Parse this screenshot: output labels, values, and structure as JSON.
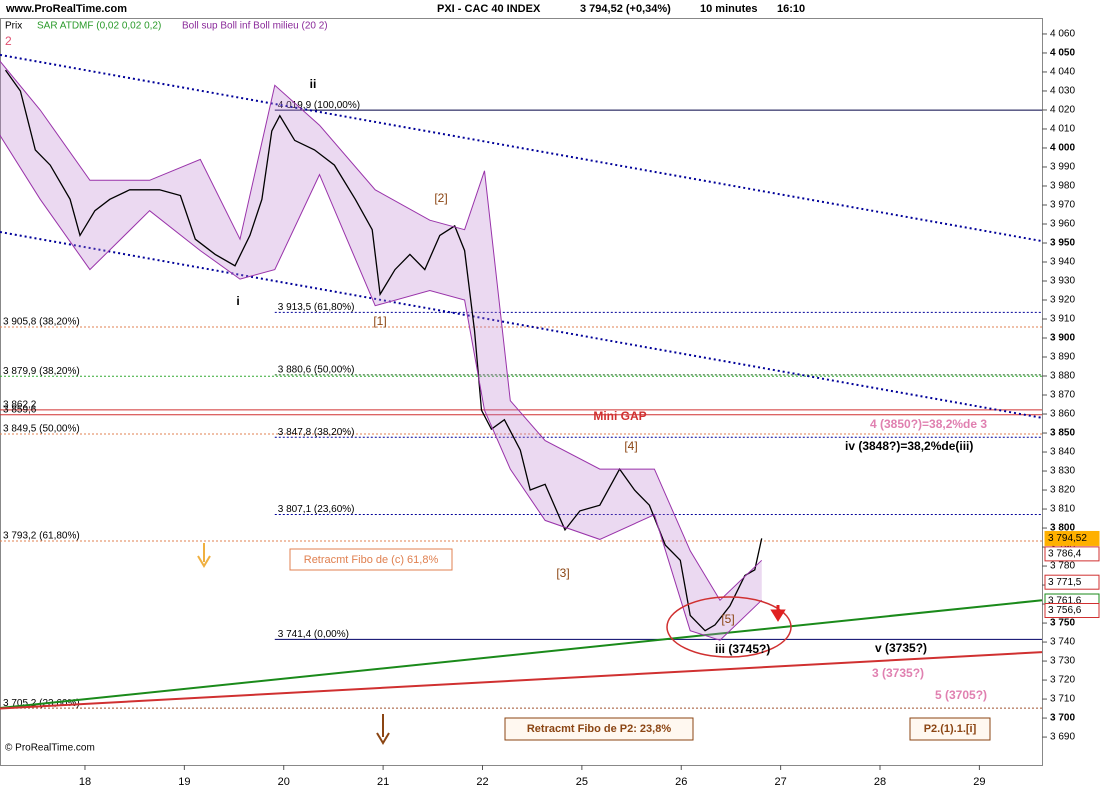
{
  "chart_data": {
    "type": "line",
    "site": "www.ProRealTime.com",
    "title": "PXI - CAC 40 INDEX",
    "price_info": "3 794,52 (+0,34%)",
    "timeframe": "10 minutes",
    "time": "16:10",
    "price_label": "Prix",
    "indicator_1": "SAR ATDMF (0,02 0,02 0,2)",
    "indicator_2": "Boll sup Boll inf Boll milieu (20 2)",
    "copyright": "© ProRealTime.com",
    "xlim": [
      -0.855,
      9.63
    ],
    "xticks": [
      {
        "value": 0,
        "label": "18"
      },
      {
        "value": 1,
        "label": "19"
      },
      {
        "value": 2,
        "label": "20"
      },
      {
        "value": 3,
        "label": "21"
      },
      {
        "value": 4,
        "label": "22"
      },
      {
        "value": 5,
        "label": "25"
      },
      {
        "value": 6,
        "label": "26"
      },
      {
        "value": 7,
        "label": "27"
      },
      {
        "value": 8,
        "label": "28"
      },
      {
        "value": 9,
        "label": "29"
      }
    ],
    "ylim": [
      3675.3,
      4068.4
    ],
    "yticks": [
      {
        "value": 4060,
        "label": "4 060"
      },
      {
        "value": 4050,
        "label": "4 050"
      },
      {
        "value": 4040,
        "label": "4 040"
      },
      {
        "value": 4030,
        "label": "4 030"
      },
      {
        "value": 4020,
        "label": "4 020"
      },
      {
        "value": 4010,
        "label": "4 010"
      },
      {
        "value": 4000,
        "label": "4 000"
      },
      {
        "value": 3990,
        "label": "3 990"
      },
      {
        "value": 3980,
        "label": "3 980"
      },
      {
        "value": 3970,
        "label": "3 970"
      },
      {
        "value": 3960,
        "label": "3 960"
      },
      {
        "value": 3950,
        "label": "3 950"
      },
      {
        "value": 3940,
        "label": "3 940"
      },
      {
        "value": 3930,
        "label": "3 930"
      },
      {
        "value": 3920,
        "label": "3 920"
      },
      {
        "value": 3910,
        "label": "3 910"
      },
      {
        "value": 3900,
        "label": "3 900"
      },
      {
        "value": 3890,
        "label": "3 890"
      },
      {
        "value": 3880,
        "label": "3 880"
      },
      {
        "value": 3870,
        "label": "3 870"
      },
      {
        "value": 3860,
        "label": "3 860"
      },
      {
        "value": 3850,
        "label": "3 850"
      },
      {
        "value": 3840,
        "label": "3 840"
      },
      {
        "value": 3830,
        "label": "3 830"
      },
      {
        "value": 3820,
        "label": "3 820"
      },
      {
        "value": 3810,
        "label": "3 810"
      },
      {
        "value": 3800,
        "label": "3 800"
      },
      {
        "value": 3790,
        "label": "3 790"
      },
      {
        "value": 3780,
        "label": "3 780"
      },
      {
        "value": 3770,
        "label": "3 770"
      },
      {
        "value": 3760,
        "label": "3 760"
      },
      {
        "value": 3750,
        "label": "3 750"
      },
      {
        "value": 3740,
        "label": "3 740"
      },
      {
        "value": 3730,
        "label": "3 730"
      },
      {
        "value": 3720,
        "label": "3 720"
      },
      {
        "value": 3710,
        "label": "3 710"
      },
      {
        "value": 3700,
        "label": "3 700"
      },
      {
        "value": 3690,
        "label": "3 690"
      }
    ],
    "series": [
      {
        "color": "#000000",
        "x": [
          -0.8,
          -0.65,
          -0.5,
          -0.35,
          -0.15,
          -0.05,
          0.1,
          0.25,
          0.45,
          0.75,
          0.96,
          1.11,
          1.31,
          1.51,
          1.66,
          1.78,
          1.88,
          1.96,
          2.11,
          2.31,
          2.51,
          2.72,
          2.89,
          2.97,
          3.12,
          3.27,
          3.42,
          3.57,
          3.72,
          3.82,
          3.92,
          3.99,
          4.09,
          4.22,
          4.38,
          4.48,
          4.63,
          4.83,
          4.98,
          5.18,
          5.38,
          5.53,
          5.68,
          5.84,
          5.99,
          6.09,
          6.24,
          6.34,
          6.49,
          6.64,
          6.74,
          6.81
        ],
        "values": [
          4041,
          4030,
          3999,
          3991,
          3973,
          3954,
          3967,
          3973,
          3978,
          3978,
          3975,
          3952,
          3944,
          3938,
          3954,
          3973,
          4009,
          4017,
          4004,
          3999,
          3991,
          3973,
          3957,
          3923,
          3936,
          3944,
          3936,
          3954,
          3959,
          3946,
          3904,
          3862,
          3852,
          3857,
          3841,
          3820,
          3823,
          3799,
          3809,
          3812,
          3831,
          3820,
          3812,
          3791,
          3783,
          3754,
          3746,
          3749,
          3759,
          3775,
          3778,
          3794.52
        ]
      },
      {
        "name": "Boll sup",
        "color": "#9933aa",
        "x": [
          -0.86,
          -0.45,
          0.05,
          0.65,
          1.16,
          1.56,
          1.91,
          2.36,
          2.92,
          3.47,
          3.82,
          4.02,
          4.28,
          4.63,
          5.18,
          5.73,
          6.09,
          6.39,
          6.81
        ],
        "values": [
          4046,
          4020,
          3983,
          3983,
          3994,
          3952,
          4033,
          4012,
          3978,
          3962,
          3957,
          3988,
          3867,
          3846,
          3831,
          3831,
          3788,
          3762,
          3783
        ]
      },
      {
        "name": "Boll inf",
        "color": "#9933aa",
        "x": [
          -0.86,
          -0.45,
          0.05,
          0.65,
          1.16,
          1.56,
          1.91,
          2.36,
          2.92,
          3.47,
          3.82,
          4.02,
          4.28,
          4.63,
          5.18,
          5.73,
          6.09,
          6.39,
          6.81
        ],
        "values": [
          4007,
          3973,
          3936,
          3967,
          3946,
          3931,
          3936,
          3986,
          3917,
          3925,
          3920,
          3862,
          3831,
          3804,
          3794,
          3807,
          3746,
          3741,
          3762
        ]
      }
    ],
    "trend_lines": [
      {
        "color": "#000099",
        "style": "dotted",
        "x": [
          -0.855,
          9.63
        ],
        "y": [
          4049,
          3951
        ]
      },
      {
        "color": "#000099",
        "style": "dotted",
        "x": [
          -0.855,
          9.63
        ],
        "y": [
          3955.8,
          3858
        ]
      },
      {
        "color": "#1a8a1a",
        "style": "solid",
        "x": [
          -0.855,
          9.63
        ],
        "y": [
          3705.3,
          3762
        ]
      },
      {
        "color": "#d03030",
        "style": "solid",
        "x": [
          -0.855,
          9.63
        ],
        "y": [
          3705,
          3734.7
        ]
      }
    ],
    "levels": [
      {
        "value": 4019.9,
        "label": "4 019,9 (100,00%)",
        "color": "#000044",
        "style": "solid",
        "x_start": 1.91
      },
      {
        "value": 3913.5,
        "label": "3 913,5 (61,80%)",
        "color": "#000099",
        "style": "dotted",
        "x_start": 1.91
      },
      {
        "value": 3905.8,
        "label": "3 905,8 (38,20%)",
        "color": "#e08050",
        "style": "dotted",
        "x_start": -0.855
      },
      {
        "value": 3879.9,
        "label": "3 879,9 (38,20%)",
        "color": "#33aa33",
        "style": "dotted",
        "x_start": -0.855
      },
      {
        "value": 3880.6,
        "label": "3 880,6 (50,00%)",
        "color": "#116611",
        "style": "dotted",
        "x_start": 1.91
      },
      {
        "value": 3862.2,
        "label": "3 862,2",
        "color": "#d03030",
        "style": "solid",
        "x_start": -0.855
      },
      {
        "value": 3859.6,
        "label": "3 859,6",
        "color": "#d03030",
        "style": "solid",
        "x_start": -0.855
      },
      {
        "value": 3849.5,
        "label": "3 849,5 (50,00%)",
        "color": "#e08050",
        "style": "dotted",
        "x_start": -0.855
      },
      {
        "value": 3847.8,
        "label": "3 847,8 (38,20%)",
        "color": "#000099",
        "style": "dotted",
        "x_start": 1.91
      },
      {
        "value": 3807.1,
        "label": "3 807,1 (23,60%)",
        "color": "#000099",
        "style": "dotted",
        "x_start": 1.91
      },
      {
        "value": 3793.2,
        "label": "3 793,2 (61,80%)",
        "color": "#e08050",
        "style": "dotted",
        "x_start": -0.855
      },
      {
        "value": 3741.4,
        "label": "3 741,4 (0,00%)",
        "color": "#000066",
        "style": "solid",
        "x_start": 1.91
      },
      {
        "value": 3705.2,
        "label": "3 705,2 (23,60%)",
        "color": "#a0522d",
        "style": "dotted",
        "x_start": -0.855
      }
    ],
    "price_tags": [
      {
        "value": 3794.52,
        "label": "3 794,52",
        "color": "#ffb000"
      },
      {
        "value": 3786.4,
        "label": "3 786,4",
        "color": "#d03030"
      },
      {
        "value": 3771.5,
        "label": "3 771,5",
        "color": "#d03030"
      },
      {
        "value": 3761.6,
        "label": "3 761,6",
        "color": "#1a8a1a"
      },
      {
        "value": 3756.6,
        "label": "3 756,6",
        "color": "#d03030"
      }
    ],
    "annotations": [
      {
        "text": "2",
        "color": "#e05070"
      },
      {
        "text": "ii",
        "color": "#000000"
      },
      {
        "text": "i",
        "color": "#000000"
      },
      {
        "text": "[1]",
        "color": "#8b4513"
      },
      {
        "text": "[2]",
        "color": "#8b4513"
      },
      {
        "text": "[3]",
        "color": "#8b4513"
      },
      {
        "text": "[4]",
        "color": "#8b4513"
      },
      {
        "text": "[5]",
        "color": "#8b4513"
      },
      {
        "text": "iii (3745?)",
        "color": "#000000"
      },
      {
        "text": "iv (3848?)=38,2%de(iii)",
        "color": "#000000"
      },
      {
        "text": "4 (3850?)=38,2%de 3",
        "color": "#e080b0"
      },
      {
        "text": "v (3735?)",
        "color": "#000000"
      },
      {
        "text": "3 (3735?)",
        "color": "#e080b0"
      },
      {
        "text": "5 (3705?)",
        "color": "#e080b0"
      },
      {
        "text": "Mini GAP",
        "color": "#d03030"
      }
    ],
    "boxes": [
      {
        "text": "Retracmt Fibo de (c) 61,8%",
        "color": "#e08050"
      },
      {
        "text": "Retracmt Fibo de P2: 23,8%",
        "color": "#8b4513"
      },
      {
        "text": "P2.(1).1.[i]",
        "color": "#8b4513"
      }
    ]
  }
}
